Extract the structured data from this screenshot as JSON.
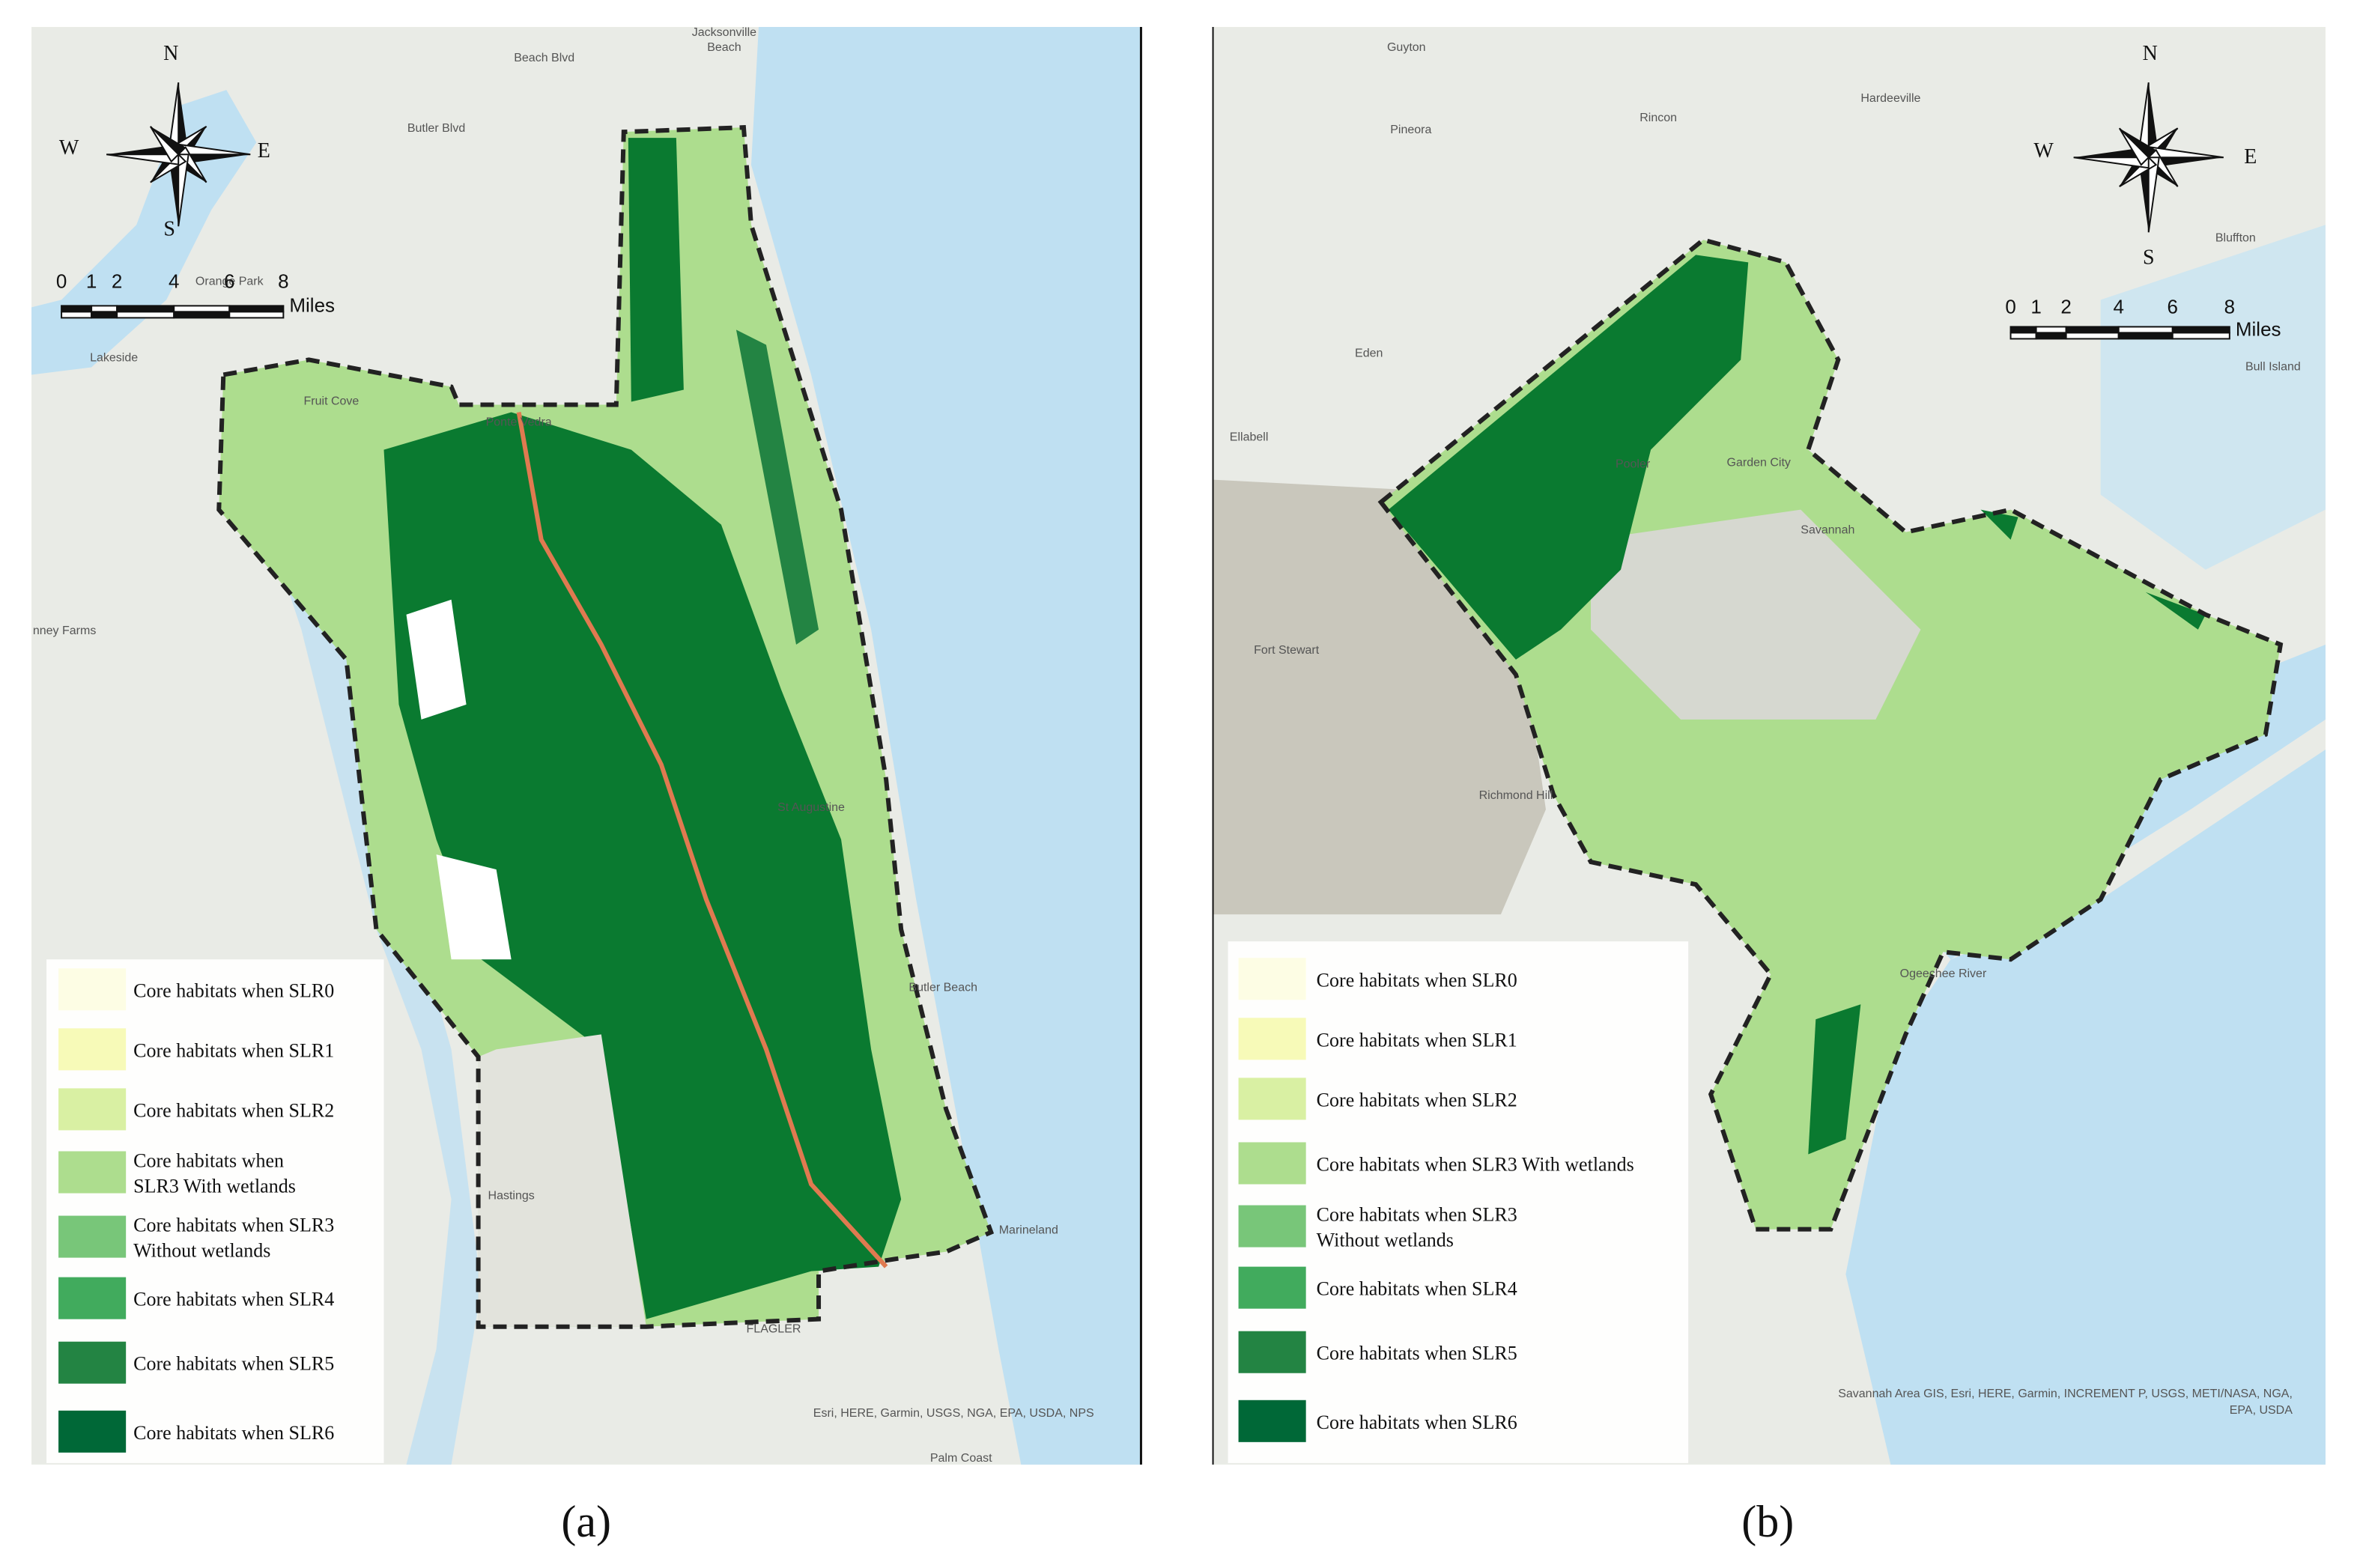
{
  "panels": [
    {
      "caption": "(a)",
      "compass": {
        "n": "N",
        "s": "S",
        "w": "W",
        "e": "E"
      },
      "scale": {
        "ticks": [
          "0",
          "1",
          "2",
          "4",
          "6",
          "8"
        ],
        "unit": "Miles"
      },
      "legend": [
        {
          "label": [
            "Core habitats when SLR0"
          ],
          "color": "#fdfde4"
        },
        {
          "label": [
            "Core habitats when SLR1"
          ],
          "color": "#f7fab8"
        },
        {
          "label": [
            "Core habitats when SLR2"
          ],
          "color": "#d9f0a3"
        },
        {
          "label": [
            "Core habitats when",
            "SLR3 With wetlands"
          ],
          "color": "#addd8e"
        },
        {
          "label": [
            "Core habitats when SLR3",
            "Without wetlands"
          ],
          "color": "#78c679"
        },
        {
          "label": [
            "Core habitats when SLR4"
          ],
          "color": "#41ab5d"
        },
        {
          "label": [
            "Core habitats when SLR5"
          ],
          "color": "#238443"
        },
        {
          "label": [
            "Core habitats when SLR6"
          ],
          "color": "#006837"
        }
      ],
      "attribution": [
        "Esri, HERE, Garmin, USGS, NGA, EPA, USDA, NPS"
      ],
      "places": [
        "Jacksonville",
        "Beach",
        "Beach Blvd",
        "Butler Blvd",
        "Orange Park",
        "Lakeside",
        "Fruit Cove",
        "Ponte Vedra",
        "nney Farms",
        "St Augustine",
        "Butler Beach",
        "Hastings",
        "FLAGLER",
        "Palm Coast",
        "Marineland"
      ]
    },
    {
      "caption": "(b)",
      "compass": {
        "n": "N",
        "s": "S",
        "w": "W",
        "e": "E"
      },
      "scale": {
        "ticks": [
          "0",
          "1",
          "2",
          "4",
          "6",
          "8"
        ],
        "unit": "Miles"
      },
      "legend": [
        {
          "label": [
            "Core habitats when SLR0"
          ],
          "color": "#fdfde4"
        },
        {
          "label": [
            "Core habitats when SLR1"
          ],
          "color": "#f7fab8"
        },
        {
          "label": [
            "Core habitats when SLR2"
          ],
          "color": "#d9f0a3"
        },
        {
          "label": [
            "Core habitats when SLR3 With wetlands"
          ],
          "color": "#addd8e"
        },
        {
          "label": [
            "Core habitats when SLR3",
            "Without wetlands"
          ],
          "color": "#78c679"
        },
        {
          "label": [
            "Core habitats when SLR4"
          ],
          "color": "#41ab5d"
        },
        {
          "label": [
            "Core habitats when SLR5"
          ],
          "color": "#238443"
        },
        {
          "label": [
            "Core habitats when SLR6"
          ],
          "color": "#006837"
        }
      ],
      "attribution": [
        "Savannah Area GIS, Esri, HERE, Garmin, INCREMENT P, USGS, METI/NASA, NGA,",
        "EPA, USDA"
      ],
      "places": [
        "Guyton",
        "Rincon",
        "Pineora",
        "Hardeeville",
        "Eden",
        "Ellabell",
        "Pooler",
        "Garden City",
        "Savannah",
        "Fort Stewart",
        "Richmond Hill",
        "Bluffton",
        "Bull Island",
        "Ogeechee River"
      ]
    }
  ]
}
